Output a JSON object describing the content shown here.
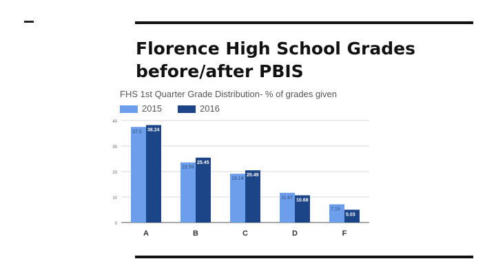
{
  "slide": {
    "title_line1": "Florence High School Grades",
    "title_line2": "before/after PBIS"
  },
  "chart_data": {
    "type": "bar",
    "title": "FHS 1st Quarter Grade Distribution- % of grades given",
    "categories": [
      "A",
      "B",
      "C",
      "D",
      "F"
    ],
    "series": [
      {
        "name": "2015",
        "color": "#6d9eeb",
        "values": [
          37.5,
          23.59,
          19.14,
          11.67,
          7.15
        ],
        "labels": [
          "37.5",
          "23.59",
          "19.14",
          "11.67",
          "7.15"
        ]
      },
      {
        "name": "2016",
        "color": "#1c4587",
        "values": [
          38.24,
          25.45,
          20.49,
          10.68,
          5.03
        ],
        "labels": [
          "38.24",
          "25.45",
          "20.49",
          "10.68",
          "5.03"
        ]
      }
    ],
    "ylim": [
      0,
      40
    ],
    "yticks": [
      0,
      10,
      20,
      30,
      40
    ],
    "grid": true,
    "legend_position": "top-left"
  }
}
